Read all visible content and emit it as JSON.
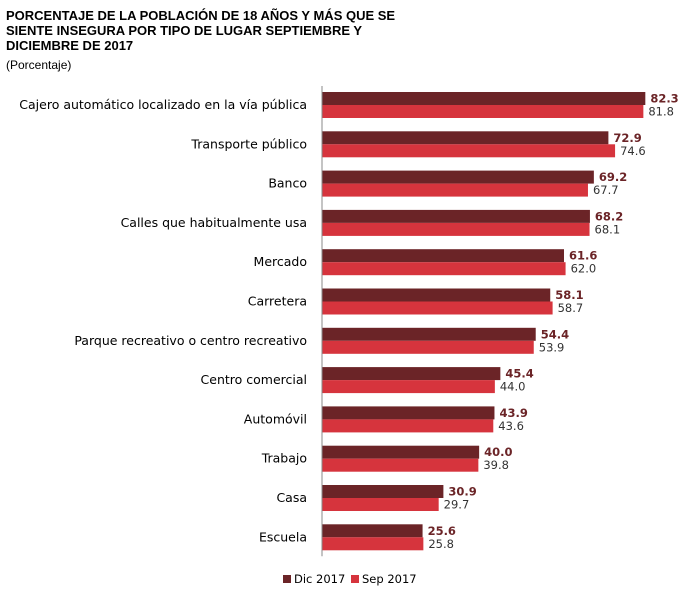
{
  "chart_data": {
    "type": "bar",
    "orientation": "horizontal",
    "title": "PORCENTAJE DE LA POBLACIÓN DE 18 AÑOS Y MÁS QUE SE SIENTE INSEGURA POR TIPO DE LUGAR SEPTIEMBRE Y DICIEMBRE DE 2017",
    "subtitle": "(Porcentaje)",
    "categories": [
      "Cajero automático localizado en la vía pública",
      "Transporte público",
      "Banco",
      "Calles que habitualmente usa",
      "Mercado",
      "Carretera",
      "Parque recreativo o centro recreativo",
      "Centro comercial",
      "Automóvil",
      "Trabajo",
      "Casa",
      "Escuela"
    ],
    "series": [
      {
        "name": "Dic 2017",
        "color": "#6b2427",
        "values": [
          82.3,
          72.9,
          69.2,
          68.2,
          61.6,
          58.1,
          54.4,
          45.4,
          43.9,
          40.0,
          30.9,
          25.6
        ],
        "labels": [
          "82.3",
          "72.9",
          "69.2",
          "68.2",
          "61.6",
          "58.1",
          "54.4",
          "45.4",
          "43.9",
          "40.0",
          "30.9",
          "25.6"
        ]
      },
      {
        "name": "Sep 2017",
        "color": "#d6343d",
        "values": [
          81.8,
          74.6,
          67.7,
          68.1,
          62.0,
          58.7,
          53.9,
          44.0,
          43.6,
          39.8,
          29.7,
          25.8
        ],
        "labels": [
          "81.8",
          "74.6",
          "67.7",
          "68.1",
          "62.0",
          "58.7",
          "53.9",
          "44.0",
          "43.6",
          "39.8",
          "29.7",
          "25.8"
        ]
      }
    ],
    "xlim": [
      0,
      84
    ],
    "grid": false,
    "legend_position": "bottom"
  }
}
